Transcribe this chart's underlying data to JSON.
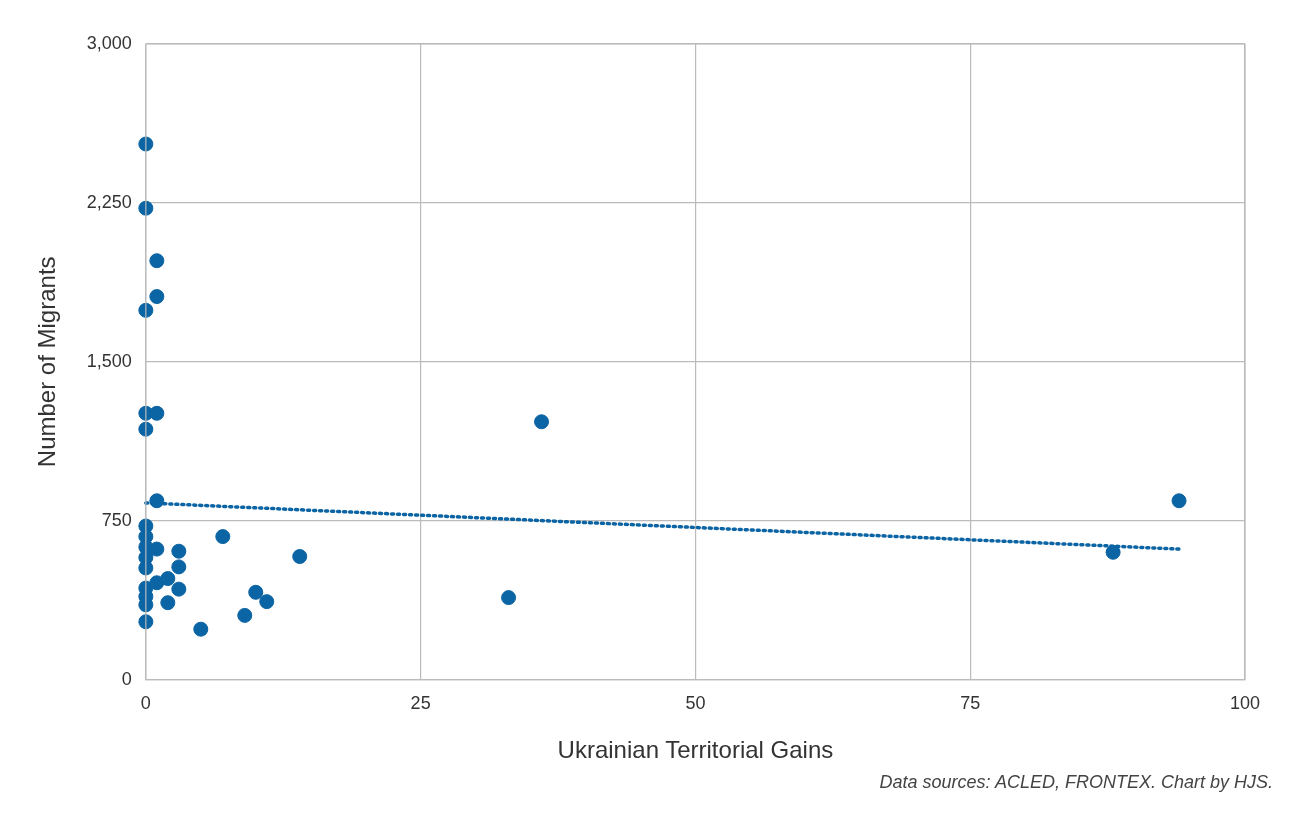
{
  "chart_data": {
    "type": "scatter",
    "xlabel": "Ukrainian Territorial Gains",
    "ylabel": "Number of Migrants",
    "annotations": [
      "Data sources: ACLED, FRONTEX. Chart by HJS."
    ],
    "xlim": [
      0,
      100
    ],
    "xticks": [
      0,
      25,
      50,
      75,
      100
    ],
    "ylim": [
      0,
      3000
    ],
    "yticks": [
      0,
      {
        "value": 750,
        "label": "750"
      },
      {
        "value": 1500,
        "label": "1,500"
      },
      {
        "value": 2250,
        "label": "2,250"
      },
      {
        "value": 3000,
        "label": "3,000"
      }
    ],
    "grid": true,
    "legend": false,
    "marker": "circle",
    "series": [
      {
        "type": "scatter",
        "color": "#0b64a4",
        "x": [
          0,
          0,
          0,
          0,
          0,
          0,
          0,
          0,
          0,
          0,
          0,
          0,
          0,
          0,
          1,
          1,
          1,
          1,
          1,
          1,
          2,
          2,
          3,
          3,
          3,
          5,
          7,
          9,
          10,
          11,
          14,
          33,
          36,
          88,
          94
        ],
        "values": [
          2528,
          2225,
          1743,
          1257,
          1182,
          725,
          675,
          626,
          576,
          527,
          432,
          392,
          353,
          273,
          1977,
          1808,
          1257,
          844,
          616,
          457,
          477,
          363,
          606,
          532,
          427,
          238,
          675,
          303,
          412,
          368,
          581,
          387,
          1217,
          601,
          844
        ]
      },
      {
        "type": "line",
        "color": "#0b64a4",
        "line_style": "dotted",
        "marker": "none",
        "x": [
          0,
          94
        ],
        "values": [
          834,
          616
        ]
      }
    ]
  }
}
